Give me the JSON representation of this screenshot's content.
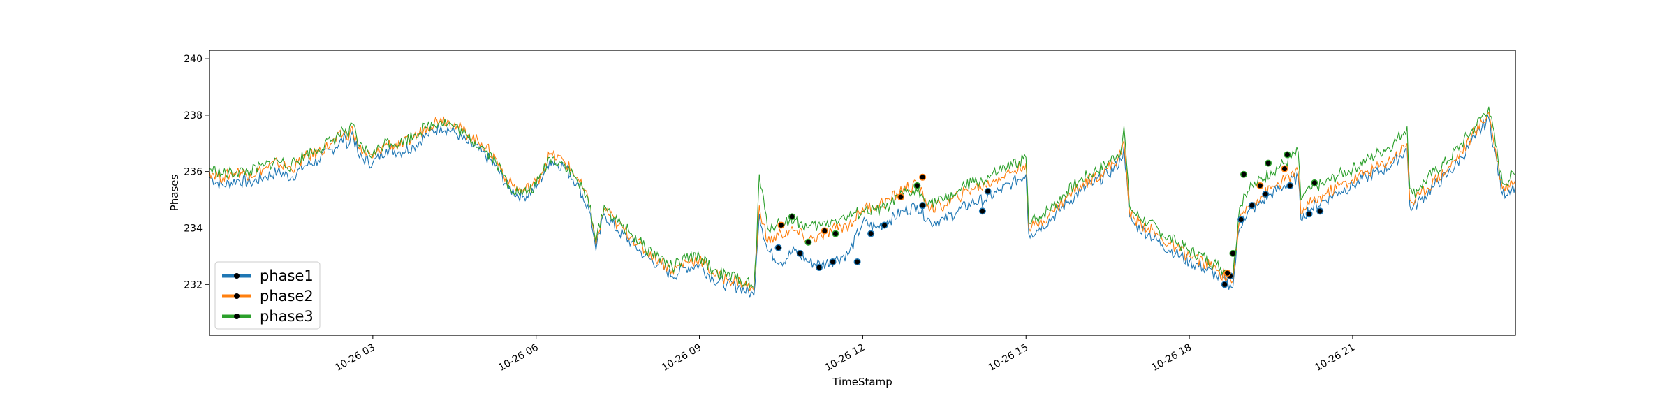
{
  "chart_data": {
    "type": "line",
    "title": "",
    "xlabel": "TimeStamp",
    "ylabel": "Phases",
    "xlim": [
      "2023-10-26 00:00",
      "2023-10-26 23:59"
    ],
    "ylim": [
      230.2,
      240.3
    ],
    "x_ticks": [
      "10-26 03",
      "10-26 06",
      "10-26 09",
      "10-26 12",
      "10-26 15",
      "10-26 18",
      "10-26 21"
    ],
    "x_tick_hours": [
      3,
      6,
      9,
      12,
      15,
      18,
      21
    ],
    "y_ticks": [
      232,
      234,
      236,
      238,
      240
    ],
    "grid": false,
    "legend_position": "lower-left",
    "x_hours": [
      0.0,
      0.25,
      0.5,
      0.75,
      1.0,
      1.25,
      1.5,
      1.75,
      2.0,
      2.25,
      2.5,
      2.55,
      2.62,
      2.75,
      3.0,
      3.25,
      3.5,
      3.75,
      4.0,
      4.25,
      4.5,
      4.75,
      5.0,
      5.25,
      5.5,
      5.75,
      6.0,
      6.25,
      6.5,
      6.75,
      7.0,
      7.05,
      7.1,
      7.25,
      7.5,
      7.75,
      8.0,
      8.25,
      8.5,
      8.75,
      9.0,
      9.25,
      9.5,
      9.75,
      10.0,
      10.05,
      10.1,
      10.25,
      10.5,
      10.75,
      11.0,
      11.25,
      11.5,
      11.75,
      12.0,
      12.25,
      12.5,
      12.75,
      13.0,
      13.25,
      13.5,
      13.75,
      14.0,
      14.25,
      14.5,
      14.75,
      15.0,
      15.05,
      15.1,
      15.25,
      15.5,
      15.75,
      16.0,
      16.25,
      16.5,
      16.75,
      16.8,
      16.9,
      17.0,
      17.25,
      17.5,
      17.75,
      18.0,
      18.25,
      18.5,
      18.75,
      18.8,
      18.9,
      19.0,
      19.25,
      19.5,
      19.75,
      20.0,
      20.05,
      20.1,
      20.25,
      20.5,
      20.75,
      21.0,
      21.25,
      21.5,
      21.75,
      22.0,
      22.05,
      22.1,
      22.25,
      22.5,
      22.75,
      23.0,
      23.25,
      23.5,
      23.75,
      23.99
    ],
    "series": [
      {
        "name": "phase1",
        "color": "#1f77b4",
        "values": [
          235.8,
          235.5,
          235.7,
          235.6,
          235.8,
          236.0,
          235.8,
          236.2,
          236.4,
          236.8,
          237.2,
          236.9,
          237.4,
          236.5,
          236.3,
          236.8,
          236.7,
          236.9,
          237.3,
          237.6,
          237.4,
          237.0,
          236.7,
          236.2,
          235.4,
          235.1,
          235.4,
          236.4,
          236.2,
          235.6,
          234.5,
          233.8,
          233.2,
          234.5,
          233.9,
          233.5,
          233.0,
          232.7,
          232.3,
          232.6,
          232.7,
          232.2,
          232.0,
          231.9,
          231.6,
          233.0,
          234.5,
          233.2,
          232.8,
          233.2,
          232.8,
          232.7,
          232.9,
          233.1,
          234.2,
          234.0,
          234.3,
          234.6,
          234.8,
          234.2,
          234.3,
          234.6,
          234.9,
          235.0,
          235.3,
          235.6,
          235.9,
          233.8,
          233.8,
          234.0,
          234.4,
          234.9,
          235.3,
          235.6,
          235.9,
          236.4,
          236.9,
          234.4,
          234.1,
          233.8,
          233.4,
          233.1,
          232.8,
          232.6,
          232.3,
          232.0,
          231.9,
          233.8,
          234.4,
          234.8,
          235.2,
          235.5,
          235.8,
          234.3,
          234.5,
          234.7,
          235.0,
          235.3,
          235.5,
          235.8,
          236.0,
          236.3,
          236.8,
          234.8,
          234.7,
          235.0,
          235.5,
          235.9,
          236.5,
          237.2,
          237.9,
          235.2,
          235.5
        ],
        "annotated_points": [
          [
            10.45,
            233.3
          ],
          [
            10.85,
            233.1
          ],
          [
            11.2,
            232.6
          ],
          [
            11.45,
            232.8
          ],
          [
            11.9,
            232.8
          ],
          [
            12.15,
            233.8
          ],
          [
            12.4,
            234.1
          ],
          [
            13.1,
            234.8
          ],
          [
            14.2,
            234.6
          ],
          [
            14.3,
            235.3
          ],
          [
            18.65,
            232.0
          ],
          [
            18.75,
            232.3
          ],
          [
            18.95,
            234.3
          ],
          [
            19.15,
            234.8
          ],
          [
            19.4,
            235.2
          ],
          [
            19.85,
            235.5
          ],
          [
            20.2,
            234.5
          ],
          [
            20.4,
            234.6
          ]
        ]
      },
      {
        "name": "phase2",
        "color": "#ff7f0e",
        "values": [
          236.0,
          235.8,
          236.0,
          235.9,
          236.1,
          236.3,
          236.1,
          236.5,
          236.7,
          237.0,
          237.4,
          237.1,
          237.6,
          236.8,
          236.5,
          237.0,
          236.9,
          237.2,
          237.6,
          237.9,
          237.7,
          237.3,
          237.0,
          236.5,
          235.6,
          235.3,
          235.6,
          236.6,
          236.4,
          235.8,
          234.8,
          234.0,
          233.4,
          234.7,
          234.1,
          233.7,
          233.2,
          232.9,
          232.5,
          232.8,
          232.9,
          232.4,
          232.2,
          232.1,
          231.8,
          233.2,
          234.8,
          233.5,
          233.8,
          233.9,
          233.6,
          233.7,
          234.0,
          234.1,
          234.7,
          234.8,
          235.0,
          235.4,
          235.5,
          234.7,
          234.8,
          235.1,
          235.4,
          235.5,
          235.8,
          236.0,
          236.3,
          234.0,
          234.0,
          234.2,
          234.6,
          235.1,
          235.5,
          235.8,
          236.1,
          236.6,
          237.1,
          234.6,
          234.3,
          234.0,
          233.6,
          233.3,
          233.0,
          232.8,
          232.5,
          232.2,
          232.1,
          234.0,
          234.6,
          235.0,
          235.4,
          235.7,
          236.0,
          234.5,
          234.7,
          234.9,
          235.2,
          235.5,
          235.7,
          236.0,
          236.2,
          236.5,
          237.0,
          235.0,
          234.9,
          235.2,
          235.7,
          236.1,
          236.7,
          237.4,
          238.1,
          235.4,
          235.7
        ],
        "annotated_points": [
          [
            10.5,
            234.1
          ],
          [
            11.3,
            233.9
          ],
          [
            12.7,
            235.1
          ],
          [
            13.1,
            235.8
          ],
          [
            18.7,
            232.4
          ],
          [
            19.3,
            235.5
          ],
          [
            19.75,
            236.1
          ]
        ]
      },
      {
        "name": "phase3",
        "color": "#2ca02c",
        "values": [
          236.1,
          235.9,
          236.0,
          236.0,
          236.2,
          236.4,
          236.2,
          236.6,
          236.8,
          237.1,
          237.5,
          237.2,
          237.7,
          236.9,
          236.6,
          237.1,
          237.0,
          237.3,
          237.6,
          237.8,
          237.6,
          237.2,
          236.9,
          236.4,
          235.5,
          235.2,
          235.5,
          236.5,
          236.3,
          235.7,
          234.8,
          234.1,
          233.5,
          234.8,
          234.2,
          233.8,
          233.3,
          233.0,
          232.6,
          232.9,
          233.0,
          232.5,
          232.3,
          232.2,
          231.9,
          233.4,
          235.9,
          234.0,
          234.2,
          234.3,
          234.0,
          234.1,
          234.3,
          234.4,
          234.6,
          234.6,
          234.8,
          235.2,
          235.3,
          234.9,
          235.0,
          235.3,
          235.6,
          235.7,
          236.0,
          236.2,
          236.5,
          234.2,
          234.2,
          234.4,
          234.8,
          235.3,
          235.7,
          236.0,
          236.3,
          236.8,
          237.6,
          234.8,
          234.5,
          234.2,
          233.8,
          233.5,
          233.2,
          233.0,
          232.7,
          232.4,
          232.3,
          234.3,
          235.2,
          235.6,
          236.0,
          236.3,
          236.7,
          235.0,
          235.2,
          235.4,
          235.6,
          235.9,
          236.1,
          236.4,
          236.7,
          237.0,
          237.6,
          235.4,
          235.2,
          235.5,
          236.0,
          236.4,
          237.0,
          237.6,
          238.3,
          235.6,
          235.9
        ],
        "annotated_points": [
          [
            10.7,
            234.4
          ],
          [
            11.0,
            233.5
          ],
          [
            11.5,
            233.8
          ],
          [
            13.0,
            235.5
          ],
          [
            18.8,
            233.1
          ],
          [
            19.0,
            235.9
          ],
          [
            19.45,
            236.3
          ],
          [
            19.8,
            236.6
          ],
          [
            20.3,
            235.6
          ]
        ]
      }
    ]
  }
}
